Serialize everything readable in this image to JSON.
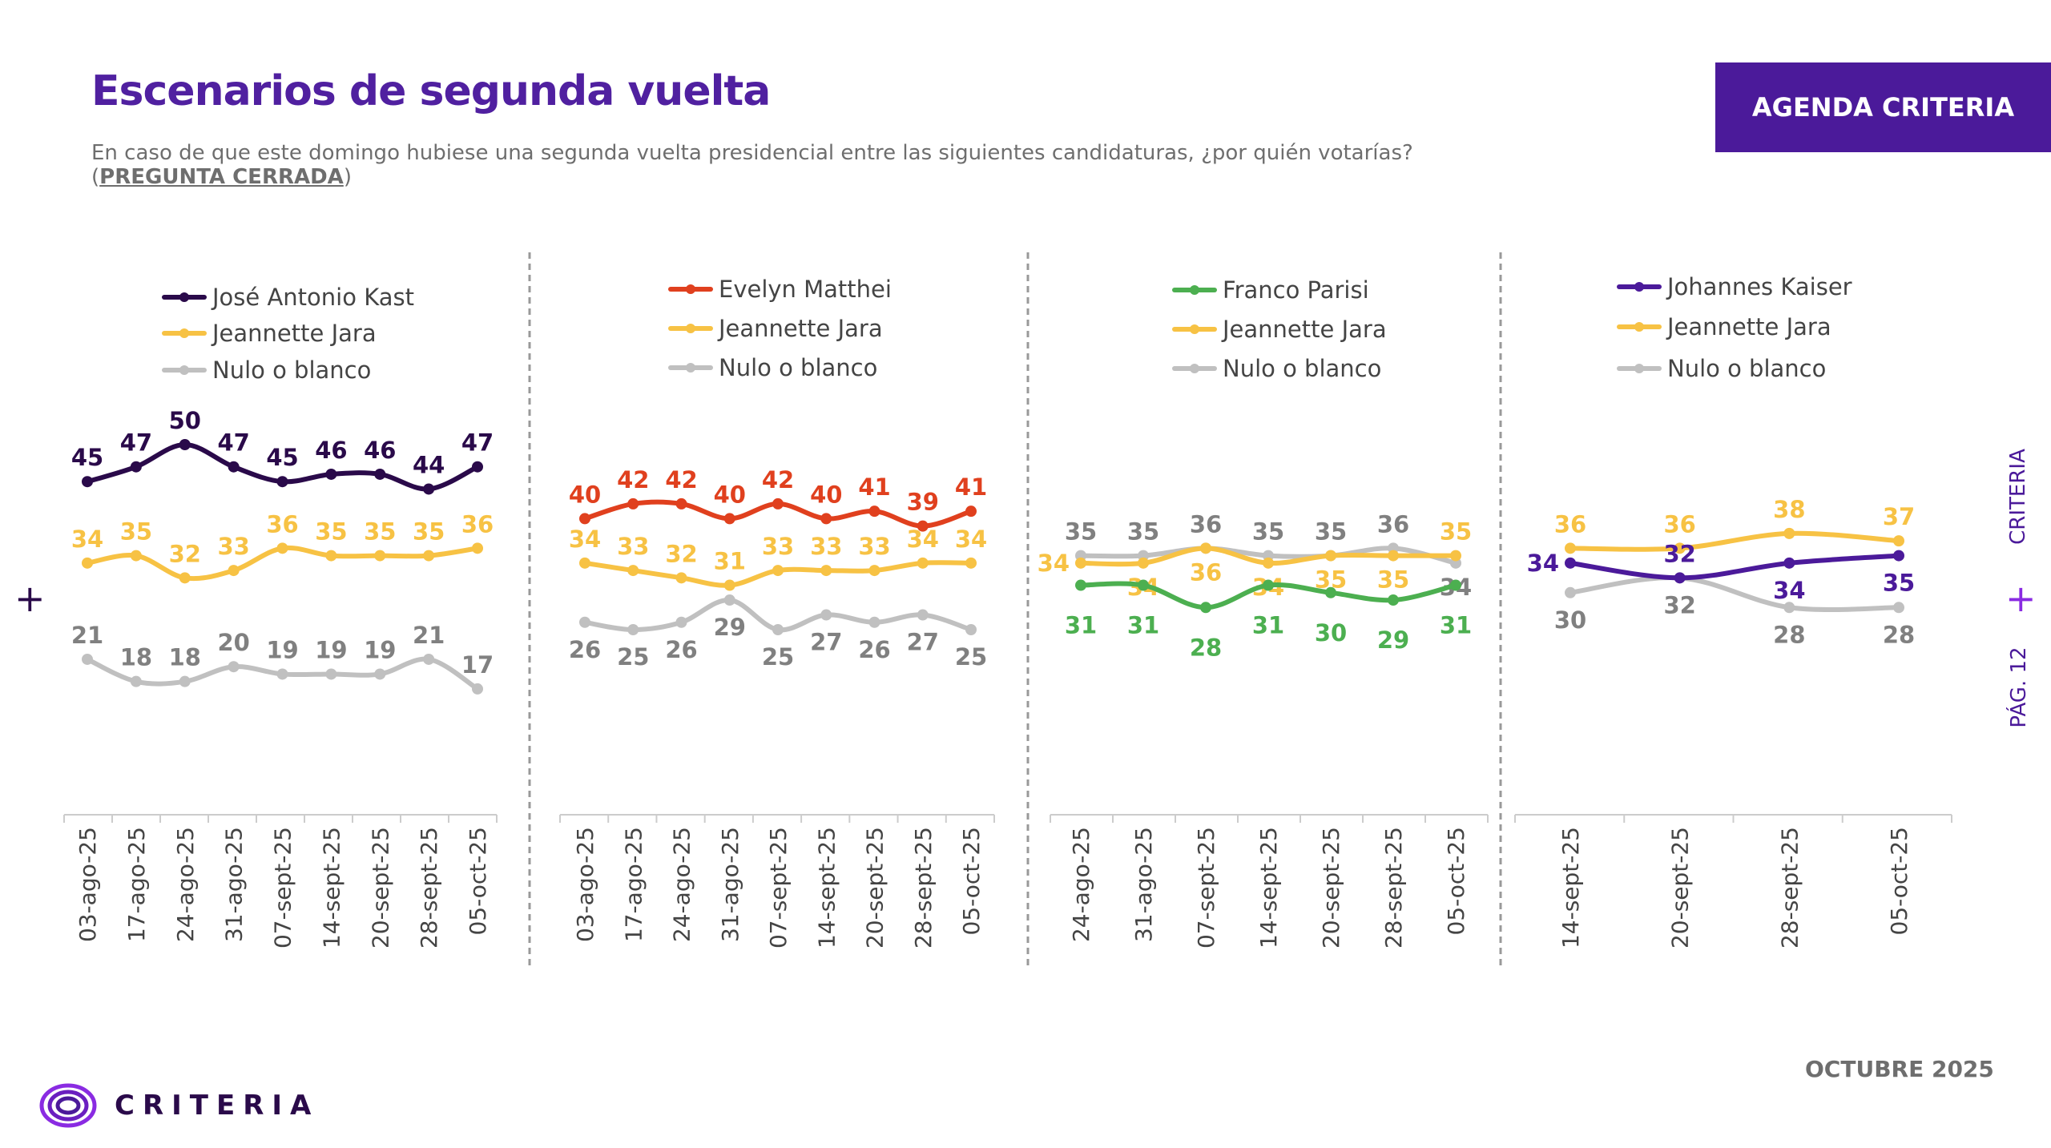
{
  "header": {
    "title": "Escenarios de segunda vuelta",
    "subtitle": "En caso de que este domingo hubiese una segunda vuelta presidencial entre las siguientes candidaturas, ¿por quién votarías?",
    "subtitle_note_open": "(",
    "subtitle_note": "PREGUNTA CERRADA",
    "subtitle_note_close": ")",
    "badge": "AGENDA CRITERIA"
  },
  "side": {
    "brand": "CRITERIA",
    "page": "PÁG. 12",
    "plus": "+"
  },
  "footer": {
    "logo_text": "CRITERIA",
    "date": "OCTUBRE 2025"
  },
  "colors": {
    "accent": "#4b1a9a",
    "kast": "#2a0a4a",
    "matthei": "#e0401e",
    "parisi": "#4caf50",
    "kaiser": "#4b1a9a",
    "jara": "#f7c244",
    "nulo": "#c0c0c0",
    "nulo_label": "#808080"
  },
  "chart_data": [
    {
      "type": "line",
      "categories": [
        "03-ago-25",
        "17-ago-25",
        "24-ago-25",
        "31-ago-25",
        "07-sept-25",
        "14-sept-25",
        "20-sept-25",
        "28-sept-25",
        "05-oct-25"
      ],
      "series": [
        {
          "name": "José Antonio Kast",
          "color": "#2a0a4a",
          "values": [
            45,
            47,
            50,
            47,
            45,
            46,
            46,
            44,
            47
          ]
        },
        {
          "name": "Jeannette Jara",
          "color": "#f7c244",
          "values": [
            34,
            35,
            32,
            33,
            36,
            35,
            35,
            35,
            36
          ]
        },
        {
          "name": "Nulo o blanco",
          "color": "#c0c0c0",
          "values": [
            21,
            18,
            18,
            20,
            19,
            19,
            19,
            21,
            17
          ]
        }
      ],
      "legend": "top",
      "grid": false
    },
    {
      "type": "line",
      "categories": [
        "03-ago-25",
        "17-ago-25",
        "24-ago-25",
        "31-ago-25",
        "07-sept-25",
        "14-sept-25",
        "20-sept-25",
        "28-sept-25",
        "05-oct-25"
      ],
      "series": [
        {
          "name": "Evelyn Matthei",
          "color": "#e0401e",
          "values": [
            40,
            42,
            42,
            40,
            42,
            40,
            41,
            39,
            41
          ]
        },
        {
          "name": "Jeannette Jara",
          "color": "#f7c244",
          "values": [
            34,
            33,
            32,
            31,
            33,
            33,
            33,
            34,
            34
          ]
        },
        {
          "name": "Nulo o blanco",
          "color": "#c0c0c0",
          "values": [
            26,
            25,
            26,
            29,
            25,
            27,
            26,
            27,
            25
          ]
        }
      ],
      "legend": "top",
      "grid": false
    },
    {
      "type": "line",
      "categories": [
        "24-ago-25",
        "31-ago-25",
        "07-sept-25",
        "14-sept-25",
        "20-sept-25",
        "28-sept-25",
        "05-oct-25"
      ],
      "series": [
        {
          "name": "Franco Parisi",
          "color": "#4caf50",
          "values": [
            31,
            31,
            28,
            31,
            30,
            29,
            31
          ]
        },
        {
          "name": "Jeannette Jara",
          "color": "#f7c244",
          "values": [
            34,
            34,
            36,
            34,
            35,
            35,
            35
          ]
        },
        {
          "name": "Nulo o blanco",
          "color": "#c0c0c0",
          "values": [
            35,
            35,
            36,
            35,
            35,
            36,
            34
          ]
        }
      ],
      "legend": "top",
      "grid": false
    },
    {
      "type": "line",
      "categories": [
        "14-sept-25",
        "20-sept-25",
        "28-sept-25",
        "05-oct-25"
      ],
      "series": [
        {
          "name": "Johannes Kaiser",
          "color": "#4b1a9a",
          "values": [
            34,
            32,
            34,
            35
          ]
        },
        {
          "name": "Jeannette Jara",
          "color": "#f7c244",
          "values": [
            36,
            36,
            38,
            37
          ]
        },
        {
          "name": "Nulo o blanco",
          "color": "#c0c0c0",
          "values": [
            30,
            32,
            28,
            28
          ]
        }
      ],
      "legend": "top",
      "grid": false
    }
  ]
}
